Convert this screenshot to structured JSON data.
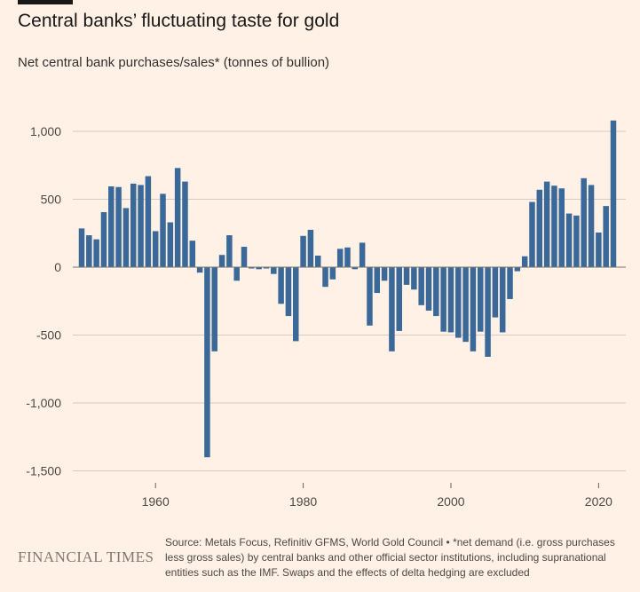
{
  "header": {
    "title": "Central banks’ fluctuating taste for gold",
    "subtitle": "Net central bank purchases/sales* (tonnes of bullion)"
  },
  "footer": {
    "logo_text": "FINANCIAL TIMES",
    "source": "Source: Metals Focus, Refinitiv GFMS, World Gold Council • *net demand (i.e. gross purchases less gross sales) by central banks and other official sector institutions, including supranational entities such as the IMF. Swaps and the effects of delta hedging are excluded"
  },
  "colors": {
    "bar": "#3a6898",
    "grid": "#d6cbc1",
    "zero_line": "#7a7470",
    "background": "#fff1e5"
  },
  "chart_data": {
    "type": "bar",
    "title": "Central banks’ fluctuating taste for gold",
    "ylabel": "Net central bank purchases/sales* (tonnes of bullion)",
    "xlabel": "",
    "ylim": [
      -1500,
      1100
    ],
    "yticks": [
      1000,
      500,
      0,
      -500,
      -1000,
      -1500
    ],
    "ytick_labels": [
      "1,000",
      "500",
      "0",
      "-500",
      "-1,000",
      "-1,500"
    ],
    "xlim": [
      1949.5,
      2022.5
    ],
    "xticks": [
      1960,
      1980,
      2000,
      2020
    ],
    "xtick_labels": [
      "1960",
      "1980",
      "2000",
      "2020"
    ],
    "grid": true,
    "series": [
      {
        "x": [
          1950,
          1951,
          1952,
          1953,
          1954,
          1955,
          1956,
          1957,
          1958,
          1959,
          1960,
          1961,
          1962,
          1963,
          1964,
          1965,
          1966,
          1967,
          1968,
          1969,
          1970,
          1971,
          1972,
          1973,
          1974,
          1975,
          1976,
          1977,
          1978,
          1979,
          1980,
          1981,
          1982,
          1983,
          1984,
          1985,
          1986,
          1987,
          1988,
          1989,
          1990,
          1991,
          1992,
          1993,
          1994,
          1995,
          1996,
          1997,
          1998,
          1999,
          2000,
          2001,
          2002,
          2003,
          2004,
          2005,
          2006,
          2007,
          2008,
          2009,
          2010,
          2011,
          2012,
          2013,
          2014,
          2015,
          2016,
          2017,
          2018,
          2019,
          2020,
          2021,
          2022
        ],
        "values": [
          285,
          235,
          205,
          405,
          595,
          590,
          435,
          615,
          605,
          670,
          265,
          540,
          330,
          730,
          630,
          195,
          -40,
          -1400,
          -620,
          90,
          235,
          -100,
          150,
          -10,
          -15,
          -10,
          -50,
          -270,
          -360,
          -545,
          230,
          275,
          85,
          -145,
          -90,
          135,
          145,
          -15,
          180,
          -430,
          -190,
          -100,
          -620,
          -470,
          -130,
          -165,
          -280,
          -320,
          -360,
          -475,
          -480,
          -520,
          -550,
          -620,
          -475,
          -660,
          -370,
          -480,
          -235,
          -30,
          80,
          480,
          570,
          630,
          600,
          580,
          395,
          380,
          655,
          605,
          255,
          450,
          1080
        ]
      }
    ]
  }
}
